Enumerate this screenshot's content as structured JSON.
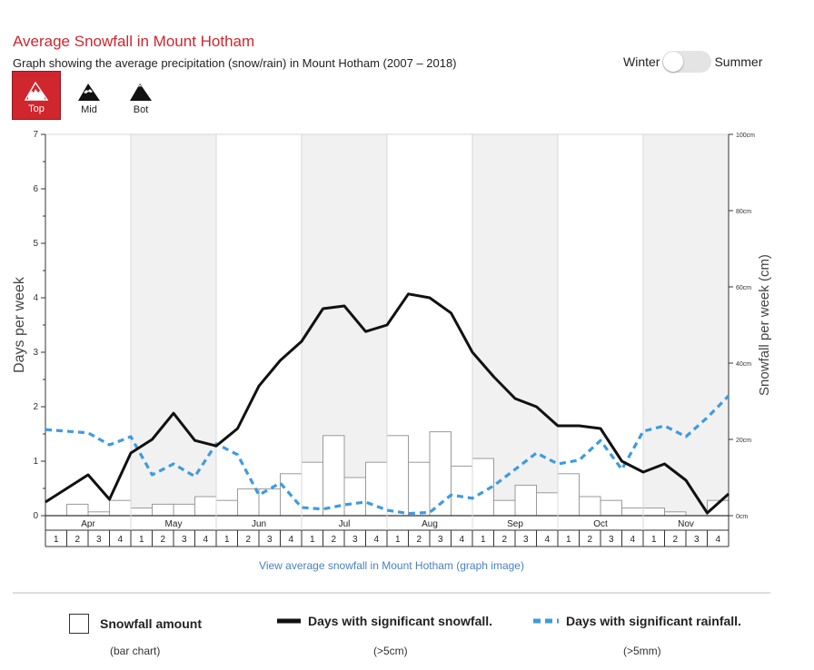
{
  "header": {
    "title": "Average Snowfall in Mount Hotham",
    "subtitle": "Graph showing the average precipitation (snow/rain) in Mount Hotham (2007 – 2018)"
  },
  "season_toggle": {
    "left_label": "Winter",
    "right_label": "Summer"
  },
  "elevation_tabs": [
    {
      "label": "Top",
      "icon": "mountain-top-icon",
      "active": true
    },
    {
      "label": "Mid",
      "icon": "mountain-mid-icon",
      "active": false
    },
    {
      "label": "Bot",
      "icon": "mountain-bot-icon",
      "active": false
    }
  ],
  "colors": {
    "accent": "#d0262e",
    "snow_line": "#111111",
    "rain_line": "#3d9be0",
    "shade": "#f1f1f1",
    "link": "#4a80c2"
  },
  "chart_data": {
    "type": "bar+line",
    "months": [
      "Apr",
      "May",
      "Jun",
      "Jul",
      "Aug",
      "Sep",
      "Oct",
      "Nov"
    ],
    "weeks": [
      "1",
      "2",
      "3",
      "4"
    ],
    "yleft_label": "Days per week",
    "yleft_ticks": [
      "0",
      "1",
      "2",
      "3",
      "4",
      "5",
      "6",
      "7"
    ],
    "yleft_range": [
      0,
      7
    ],
    "yright_label": "Snowfall per week (cm)",
    "yright_ticks": [
      "0cm",
      "20cm",
      "40cm",
      "60cm",
      "80cm",
      "100cm"
    ],
    "yright_range": [
      0,
      100
    ],
    "shaded_months": [
      "May",
      "Jul",
      "Sep",
      "Nov"
    ],
    "series": [
      {
        "name": "Snowfall amount",
        "type": "bar",
        "unit": "cm",
        "values": [
          0,
          3,
          1,
          4,
          2,
          3,
          3,
          5,
          4,
          7,
          7,
          11,
          14,
          21,
          10,
          14,
          21,
          14,
          22,
          13,
          15,
          4,
          8,
          6,
          11,
          5,
          4,
          2,
          2,
          1,
          0,
          4
        ]
      },
      {
        "name": "Days with significant snowfall.",
        "type": "line",
        "unit": "days",
        "values": [
          0.25,
          0.5,
          0.75,
          0.3,
          1.15,
          1.4,
          1.88,
          1.38,
          1.28,
          1.6,
          2.38,
          2.85,
          3.2,
          3.8,
          3.85,
          3.38,
          3.5,
          4.07,
          4.0,
          3.72,
          3.0,
          2.55,
          2.15,
          2.0,
          1.65,
          1.65,
          1.6,
          1.0,
          0.8,
          0.95,
          0.65,
          0.05,
          0.4
        ]
      },
      {
        "name": "Days with significant rainfall.",
        "type": "line",
        "unit": "days",
        "values": [
          1.58,
          1.55,
          1.52,
          1.3,
          1.45,
          0.75,
          0.95,
          0.72,
          1.32,
          1.12,
          0.38,
          0.6,
          0.15,
          0.12,
          0.2,
          0.25,
          0.1,
          0.04,
          0.06,
          0.38,
          0.32,
          0.55,
          0.85,
          1.15,
          0.95,
          1.02,
          1.38,
          0.85,
          1.55,
          1.65,
          1.45,
          1.8,
          2.2
        ]
      }
    ]
  },
  "link_text": "View average snowfall in Mount Hotham (graph image)",
  "legend": [
    {
      "label": "Snowfall amount",
      "sub": "(bar chart)"
    },
    {
      "label": "Days with significant snowfall.",
      "sub": "(>5cm)"
    },
    {
      "label": "Days with significant rainfall.",
      "sub": "(>5mm)"
    }
  ]
}
